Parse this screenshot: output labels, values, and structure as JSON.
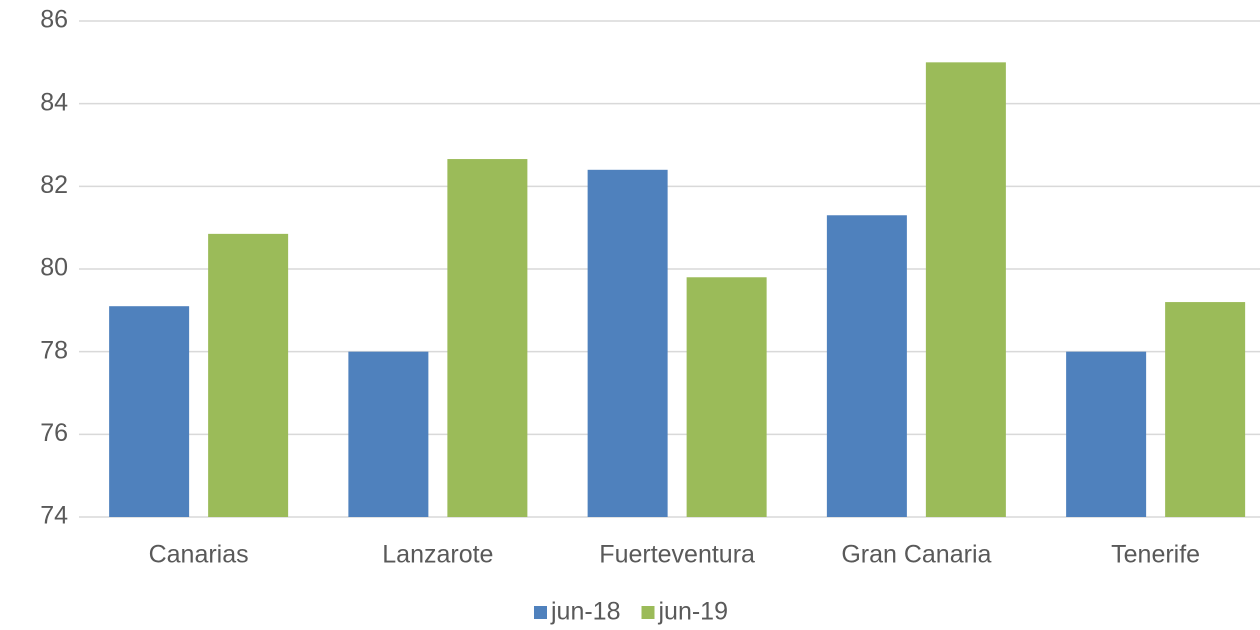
{
  "chart_data": {
    "type": "bar",
    "categories": [
      "Canarias",
      "Lanzarote",
      "Fuerteventura",
      "Gran Canaria",
      "Tenerife"
    ],
    "series": [
      {
        "name": "jun-18",
        "color": "#4f81bd",
        "values": [
          79.1,
          78.0,
          82.4,
          81.3,
          78.0
        ]
      },
      {
        "name": "jun-19",
        "color": "#9bbb59",
        "values": [
          80.85,
          82.66,
          79.8,
          85.0,
          79.2
        ]
      }
    ],
    "ylim": [
      74,
      86
    ],
    "yticks": [
      74,
      76,
      78,
      80,
      82,
      84,
      86
    ],
    "grid": true,
    "legend": "bottom"
  }
}
